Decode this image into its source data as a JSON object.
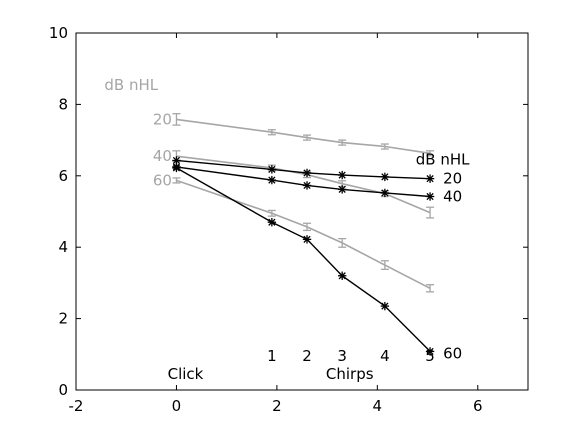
{
  "chart_data": {
    "type": "line",
    "title": "",
    "xlabel": "",
    "ylabel": "",
    "xlim": [
      -2,
      7
    ],
    "ylim": [
      0,
      10
    ],
    "x_ticks": [
      -2,
      0,
      2,
      4,
      6
    ],
    "y_ticks": [
      0,
      2,
      4,
      6,
      8,
      10
    ],
    "grid": false,
    "series": [
      {
        "name": "20",
        "group": "gray",
        "color": "#a6a6a6",
        "marker": "errorbar",
        "x": [
          0,
          1.9,
          2.6,
          3.3,
          4.15,
          5.05
        ],
        "y": [
          7.58,
          7.22,
          7.07,
          6.93,
          6.82,
          6.63
        ],
        "err": [
          0.16,
          0.07,
          0.07,
          0.07,
          0.07,
          0.07
        ]
      },
      {
        "name": "40",
        "group": "gray",
        "color": "#a6a6a6",
        "marker": "errorbar",
        "x": [
          0,
          1.9,
          2.6,
          3.3,
          4.15,
          5.05
        ],
        "y": [
          6.55,
          6.22,
          6.03,
          5.78,
          5.5,
          4.97
        ],
        "err": [
          0.15,
          0.08,
          0.08,
          0.08,
          0.08,
          0.15
        ]
      },
      {
        "name": "60",
        "group": "gray",
        "color": "#a6a6a6",
        "marker": "errorbar",
        "x": [
          0,
          1.9,
          2.6,
          3.3,
          4.15,
          5.05
        ],
        "y": [
          5.87,
          4.95,
          4.57,
          4.12,
          3.5,
          2.85
        ],
        "err": [
          0.07,
          0.08,
          0.1,
          0.12,
          0.12,
          0.1
        ]
      },
      {
        "name": "20",
        "group": "black",
        "color": "#000000",
        "marker": "star",
        "x": [
          0,
          1.9,
          2.6,
          3.3,
          4.15,
          5.05
        ],
        "y": [
          6.43,
          6.18,
          6.08,
          6.02,
          5.97,
          5.92
        ]
      },
      {
        "name": "40",
        "group": "black",
        "color": "#000000",
        "marker": "star",
        "x": [
          0,
          1.9,
          2.6,
          3.3,
          4.15,
          5.05
        ],
        "y": [
          6.25,
          5.88,
          5.73,
          5.62,
          5.52,
          5.42
        ]
      },
      {
        "name": "60",
        "group": "black",
        "color": "#000000",
        "marker": "star",
        "x": [
          0,
          1.9,
          2.6,
          3.3,
          4.15,
          5.05
        ],
        "y": [
          6.22,
          4.7,
          4.22,
          3.2,
          2.35,
          1.08
        ]
      }
    ],
    "annotations": [
      {
        "text": "dB nHL",
        "color": "#a6a6a6",
        "x": -0.9,
        "y": 8.55
      },
      {
        "text": "20",
        "color": "#a6a6a6",
        "x": -0.28,
        "y": 7.58
      },
      {
        "text": "40",
        "color": "#a6a6a6",
        "x": -0.28,
        "y": 6.55
      },
      {
        "text": "60",
        "color": "#a6a6a6",
        "x": -0.28,
        "y": 5.87
      },
      {
        "text": "dB nHL",
        "color": "#000000",
        "x": 5.3,
        "y": 6.45
      },
      {
        "text": "20",
        "color": "#000000",
        "x": 5.5,
        "y": 5.92
      },
      {
        "text": "40",
        "color": "#000000",
        "x": 5.5,
        "y": 5.42
      },
      {
        "text": "60",
        "color": "#000000",
        "x": 5.5,
        "y": 1.02
      },
      {
        "text": "1",
        "color": "#000000",
        "x": 1.9,
        "y": 0.95
      },
      {
        "text": "2",
        "color": "#000000",
        "x": 2.6,
        "y": 0.95
      },
      {
        "text": "3",
        "color": "#000000",
        "x": 3.3,
        "y": 0.95
      },
      {
        "text": "4",
        "color": "#000000",
        "x": 4.15,
        "y": 0.95
      },
      {
        "text": "5",
        "color": "#000000",
        "x": 5.05,
        "y": 0.95
      },
      {
        "text": "Click",
        "color": "#000000",
        "x": 0.18,
        "y": 0.45
      },
      {
        "text": "Chirps",
        "color": "#000000",
        "x": 3.45,
        "y": 0.45
      }
    ]
  }
}
